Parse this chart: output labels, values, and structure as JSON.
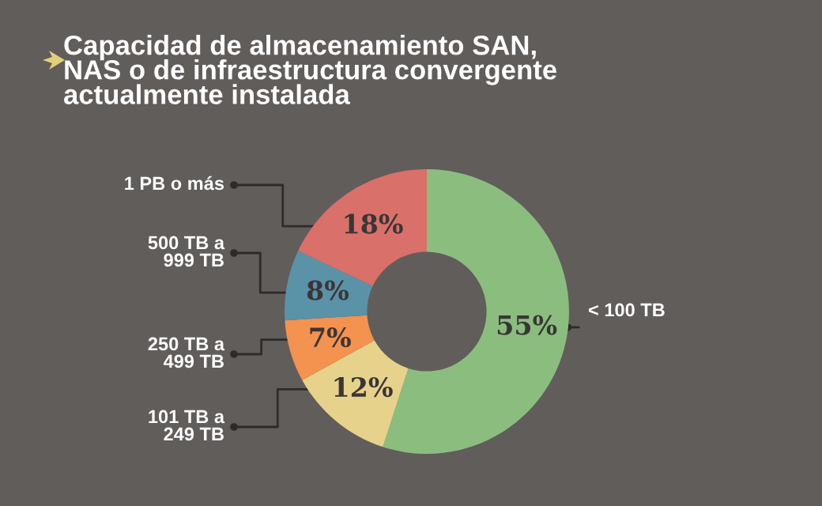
{
  "chart_data": {
    "type": "donut",
    "title": "Capacidad de almacenamiento SAN,\nNAS o de infraestructura convergente\nactualmente instalada",
    "categories": [
      "< 100 TB",
      "101 TB a\n249 TB",
      "250 TB a\n499 TB",
      "500 TB a\n999 TB",
      "1 PB o más"
    ],
    "values": [
      55,
      12,
      7,
      8,
      18
    ],
    "colors": [
      "#8bbd7f",
      "#e6d28a",
      "#f4924f",
      "#5a92a8",
      "#d9706a"
    ],
    "value_labels": [
      "55%",
      "12%",
      "7%",
      "8%",
      "18%"
    ],
    "legend": false
  }
}
